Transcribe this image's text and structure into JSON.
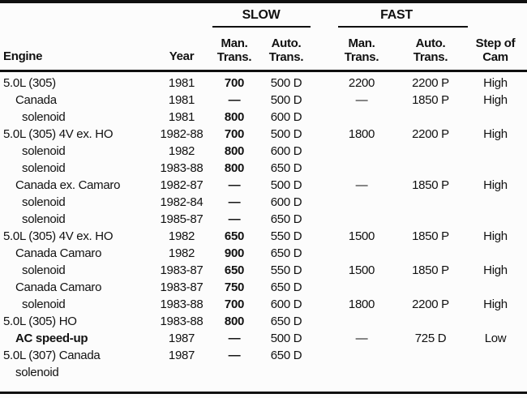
{
  "colors": {
    "ink": "#111111",
    "paper": "#fcfcfc"
  },
  "table": {
    "header": {
      "engine": "Engine",
      "year": "Year",
      "slow_group": "SLOW",
      "fast_group": "FAST",
      "man": "Man.",
      "auto": "Auto.",
      "trans": "Trans.",
      "step_line1": "Step of",
      "step_line2": "Cam"
    },
    "rows": [
      {
        "engine": "5.0L (305)",
        "indent": 0,
        "bold": false,
        "year": "1981",
        "slow_man": "700",
        "slow_auto": "500 D",
        "fast_man": "2200",
        "fast_auto": "2200 P",
        "step": "High"
      },
      {
        "engine": "Canada",
        "indent": 1,
        "bold": false,
        "year": "1981",
        "slow_man": "—",
        "slow_auto": "500 D",
        "fast_man": "—",
        "fast_auto": "1850 P",
        "step": "High"
      },
      {
        "engine": "solenoid",
        "indent": 2,
        "bold": false,
        "year": "1981",
        "slow_man": "800",
        "slow_auto": "600 D",
        "fast_man": "",
        "fast_auto": "",
        "step": ""
      },
      {
        "engine": "5.0L (305) 4V ex. HO",
        "indent": 0,
        "bold": false,
        "year": "1982-88",
        "slow_man": "700",
        "slow_auto": "500 D",
        "fast_man": "1800",
        "fast_auto": "2200 P",
        "step": "High"
      },
      {
        "engine": "solenoid",
        "indent": 2,
        "bold": false,
        "year": "1982",
        "slow_man": "800",
        "slow_auto": "600 D",
        "fast_man": "",
        "fast_auto": "",
        "step": ""
      },
      {
        "engine": "solenoid",
        "indent": 2,
        "bold": false,
        "year": "1983-88",
        "slow_man": "800",
        "slow_auto": "650 D",
        "fast_man": "",
        "fast_auto": "",
        "step": ""
      },
      {
        "engine": "Canada ex. Camaro",
        "indent": 1,
        "bold": false,
        "year": "1982-87",
        "slow_man": "—",
        "slow_auto": "500 D",
        "fast_man": "—",
        "fast_auto": "1850 P",
        "step": "High"
      },
      {
        "engine": "solenoid",
        "indent": 2,
        "bold": false,
        "year": "1982-84",
        "slow_man": "—",
        "slow_auto": "600 D",
        "fast_man": "",
        "fast_auto": "",
        "step": ""
      },
      {
        "engine": "solenoid",
        "indent": 2,
        "bold": false,
        "year": "1985-87",
        "slow_man": "—",
        "slow_auto": "650 D",
        "fast_man": "",
        "fast_auto": "",
        "step": ""
      },
      {
        "engine": "5.0L (305) 4V ex. HO",
        "indent": 0,
        "bold": false,
        "year": "1982",
        "slow_man": "650",
        "slow_auto": "550 D",
        "fast_man": "1500",
        "fast_auto": "1850 P",
        "step": "High"
      },
      {
        "engine": "Canada Camaro",
        "indent": 1,
        "bold": false,
        "year": "1982",
        "slow_man": "900",
        "slow_auto": "650 D",
        "fast_man": "",
        "fast_auto": "",
        "step": ""
      },
      {
        "engine": "solenoid",
        "indent": 2,
        "bold": false,
        "year": "1983-87",
        "slow_man": "650",
        "slow_auto": "550 D",
        "fast_man": "1500",
        "fast_auto": "1850 P",
        "step": "High"
      },
      {
        "engine": "Canada Camaro",
        "indent": 1,
        "bold": false,
        "year": "1983-87",
        "slow_man": "750",
        "slow_auto": "650 D",
        "fast_man": "",
        "fast_auto": "",
        "step": ""
      },
      {
        "engine": "solenoid",
        "indent": 2,
        "bold": false,
        "year": "1983-88",
        "slow_man": "700",
        "slow_auto": "600 D",
        "fast_man": "1800",
        "fast_auto": "2200 P",
        "step": "High"
      },
      {
        "engine": "5.0L (305) HO",
        "indent": 0,
        "bold": false,
        "year": "1983-88",
        "slow_man": "800",
        "slow_auto": "650 D",
        "fast_man": "",
        "fast_auto": "",
        "step": ""
      },
      {
        "engine": "AC speed-up",
        "indent": 1,
        "bold": true,
        "year": "1987",
        "slow_man": "—",
        "slow_auto": "500 D",
        "fast_man": "—",
        "fast_auto": "725 D",
        "step": "Low"
      },
      {
        "engine": "5.0L (307) Canada",
        "engine_line2": "solenoid",
        "indent": 0,
        "bold": false,
        "year": "1987",
        "slow_man": "—",
        "slow_auto": "650 D",
        "fast_man": "",
        "fast_auto": "",
        "step": ""
      }
    ]
  }
}
